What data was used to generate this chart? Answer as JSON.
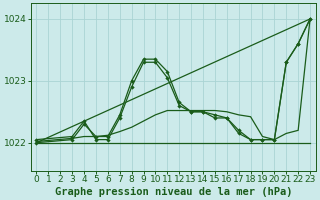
{
  "bg_color": "#cceaea",
  "grid_color": "#aad4d4",
  "line_color": "#1a5c1a",
  "xlabel": "Graphe pression niveau de la mer (hPa)",
  "xlabel_fontsize": 7.5,
  "tick_fontsize": 6.5,
  "yticks": [
    1022,
    1023,
    1024
  ],
  "ylim": [
    1021.55,
    1024.25
  ],
  "xlim": [
    -0.5,
    23.5
  ],
  "xticks": [
    0,
    1,
    2,
    3,
    4,
    5,
    6,
    7,
    8,
    9,
    10,
    11,
    12,
    13,
    14,
    15,
    16,
    17,
    18,
    19,
    20,
    21,
    22,
    23
  ],
  "series1_x": [
    0,
    1,
    2,
    3,
    4,
    5,
    6,
    7,
    8,
    9,
    10,
    11,
    12,
    13,
    14,
    15,
    16,
    17,
    18,
    19,
    20,
    21,
    22,
    23
  ],
  "series1_y": [
    1022.0,
    1022.0,
    1022.0,
    1022.0,
    1022.0,
    1022.0,
    1022.0,
    1022.0,
    1022.0,
    1022.0,
    1022.0,
    1022.0,
    1022.0,
    1022.0,
    1022.0,
    1022.0,
    1022.0,
    1022.0,
    1022.0,
    1022.0,
    1022.0,
    1022.0,
    1022.0,
    1022.0
  ],
  "series2_x": [
    0,
    3,
    4,
    5,
    6,
    7,
    8,
    9,
    10,
    11,
    12,
    13,
    14,
    15,
    16,
    17,
    18,
    19,
    20,
    21,
    22,
    23
  ],
  "series2_y": [
    1022.0,
    1022.05,
    1022.3,
    1022.1,
    1022.1,
    1022.45,
    1023.0,
    1023.35,
    1023.35,
    1023.15,
    1022.65,
    1022.5,
    1022.5,
    1022.45,
    1022.4,
    1022.2,
    1022.05,
    1022.05,
    1022.05,
    1023.3,
    1023.6,
    1024.0
  ],
  "series3_x": [
    0,
    3,
    4,
    5,
    6,
    7,
    8,
    9,
    10,
    11,
    12,
    13,
    14,
    15,
    16,
    17,
    18,
    19,
    20,
    21,
    22,
    23
  ],
  "series3_y": [
    1022.05,
    1022.1,
    1022.35,
    1022.05,
    1022.05,
    1022.4,
    1022.9,
    1023.3,
    1023.3,
    1023.05,
    1022.6,
    1022.5,
    1022.5,
    1022.4,
    1022.4,
    1022.15,
    1022.05,
    1022.05,
    1022.05,
    1023.3,
    1023.6,
    1024.0
  ],
  "series4_x": [
    0,
    23
  ],
  "series4_y": [
    1022.0,
    1024.0
  ],
  "series5_x": [
    0,
    3,
    4,
    5,
    6,
    7,
    8,
    9,
    10,
    11,
    12,
    13,
    14,
    15,
    16,
    17,
    18,
    19,
    20,
    21,
    22,
    23
  ],
  "series5_y": [
    1022.02,
    1022.07,
    1022.1,
    1022.1,
    1022.12,
    1022.18,
    1022.25,
    1022.35,
    1022.45,
    1022.52,
    1022.52,
    1022.52,
    1022.52,
    1022.52,
    1022.5,
    1022.45,
    1022.42,
    1022.1,
    1022.05,
    1022.15,
    1022.2,
    1024.0
  ]
}
